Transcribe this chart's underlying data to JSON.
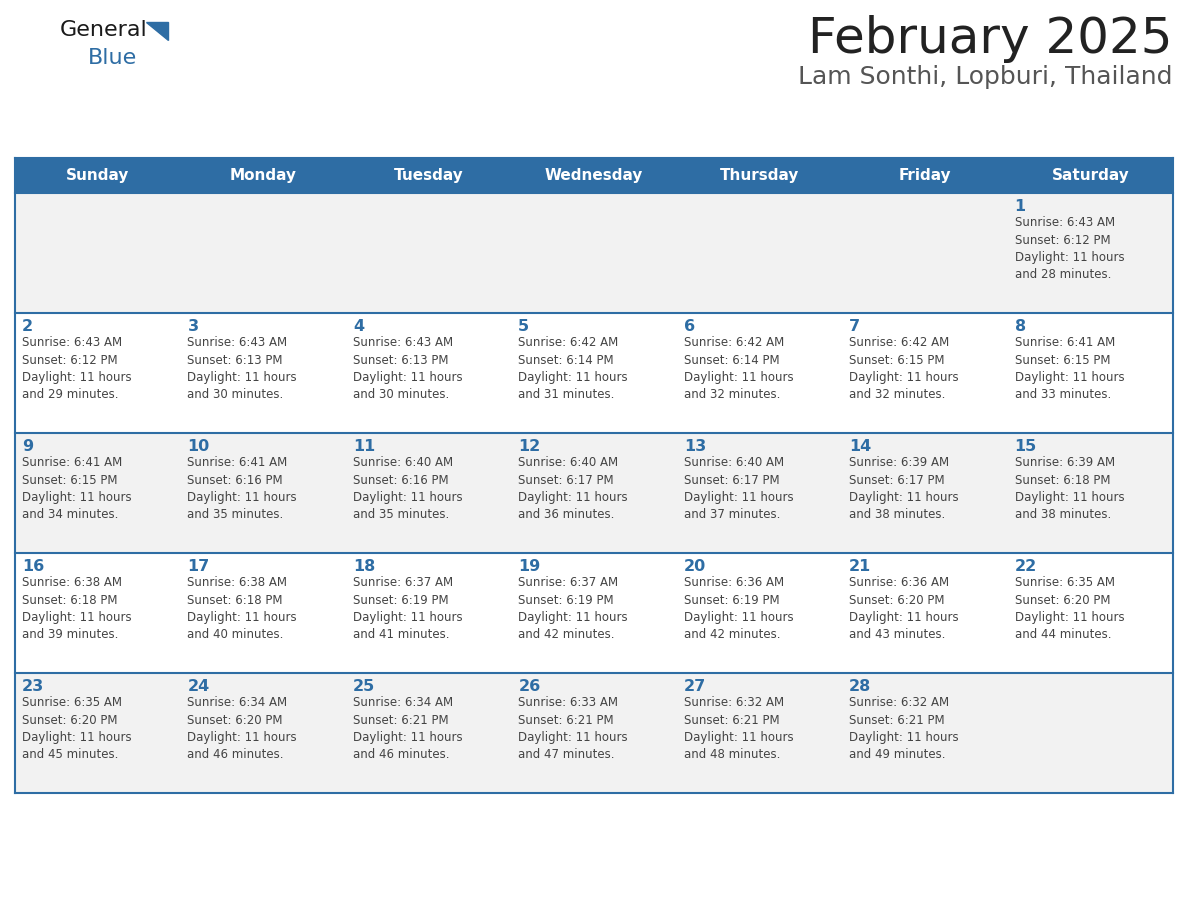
{
  "title": "February 2025",
  "subtitle": "Lam Sonthi, Lopburi, Thailand",
  "days_of_week": [
    "Sunday",
    "Monday",
    "Tuesday",
    "Wednesday",
    "Thursday",
    "Friday",
    "Saturday"
  ],
  "header_bg": "#2E6DA4",
  "header_text": "#FFFFFF",
  "cell_bg_light": "#F2F2F2",
  "cell_bg_white": "#FFFFFF",
  "cell_border": "#2E6DA4",
  "day_num_color": "#2E6DA4",
  "info_color": "#444444",
  "title_color": "#222222",
  "subtitle_color": "#555555",
  "calendar": [
    [
      {
        "day": null
      },
      {
        "day": null
      },
      {
        "day": null
      },
      {
        "day": null
      },
      {
        "day": null
      },
      {
        "day": null
      },
      {
        "day": 1,
        "sunrise": "6:43 AM",
        "sunset": "6:12 PM",
        "daylight": "11 hours and 28 minutes."
      }
    ],
    [
      {
        "day": 2,
        "sunrise": "6:43 AM",
        "sunset": "6:12 PM",
        "daylight": "11 hours and 29 minutes."
      },
      {
        "day": 3,
        "sunrise": "6:43 AM",
        "sunset": "6:13 PM",
        "daylight": "11 hours and 30 minutes."
      },
      {
        "day": 4,
        "sunrise": "6:43 AM",
        "sunset": "6:13 PM",
        "daylight": "11 hours and 30 minutes."
      },
      {
        "day": 5,
        "sunrise": "6:42 AM",
        "sunset": "6:14 PM",
        "daylight": "11 hours and 31 minutes."
      },
      {
        "day": 6,
        "sunrise": "6:42 AM",
        "sunset": "6:14 PM",
        "daylight": "11 hours and 32 minutes."
      },
      {
        "day": 7,
        "sunrise": "6:42 AM",
        "sunset": "6:15 PM",
        "daylight": "11 hours and 32 minutes."
      },
      {
        "day": 8,
        "sunrise": "6:41 AM",
        "sunset": "6:15 PM",
        "daylight": "11 hours and 33 minutes."
      }
    ],
    [
      {
        "day": 9,
        "sunrise": "6:41 AM",
        "sunset": "6:15 PM",
        "daylight": "11 hours and 34 minutes."
      },
      {
        "day": 10,
        "sunrise": "6:41 AM",
        "sunset": "6:16 PM",
        "daylight": "11 hours and 35 minutes."
      },
      {
        "day": 11,
        "sunrise": "6:40 AM",
        "sunset": "6:16 PM",
        "daylight": "11 hours and 35 minutes."
      },
      {
        "day": 12,
        "sunrise": "6:40 AM",
        "sunset": "6:17 PM",
        "daylight": "11 hours and 36 minutes."
      },
      {
        "day": 13,
        "sunrise": "6:40 AM",
        "sunset": "6:17 PM",
        "daylight": "11 hours and 37 minutes."
      },
      {
        "day": 14,
        "sunrise": "6:39 AM",
        "sunset": "6:17 PM",
        "daylight": "11 hours and 38 minutes."
      },
      {
        "day": 15,
        "sunrise": "6:39 AM",
        "sunset": "6:18 PM",
        "daylight": "11 hours and 38 minutes."
      }
    ],
    [
      {
        "day": 16,
        "sunrise": "6:38 AM",
        "sunset": "6:18 PM",
        "daylight": "11 hours and 39 minutes."
      },
      {
        "day": 17,
        "sunrise": "6:38 AM",
        "sunset": "6:18 PM",
        "daylight": "11 hours and 40 minutes."
      },
      {
        "day": 18,
        "sunrise": "6:37 AM",
        "sunset": "6:19 PM",
        "daylight": "11 hours and 41 minutes."
      },
      {
        "day": 19,
        "sunrise": "6:37 AM",
        "sunset": "6:19 PM",
        "daylight": "11 hours and 42 minutes."
      },
      {
        "day": 20,
        "sunrise": "6:36 AM",
        "sunset": "6:19 PM",
        "daylight": "11 hours and 42 minutes."
      },
      {
        "day": 21,
        "sunrise": "6:36 AM",
        "sunset": "6:20 PM",
        "daylight": "11 hours and 43 minutes."
      },
      {
        "day": 22,
        "sunrise": "6:35 AM",
        "sunset": "6:20 PM",
        "daylight": "11 hours and 44 minutes."
      }
    ],
    [
      {
        "day": 23,
        "sunrise": "6:35 AM",
        "sunset": "6:20 PM",
        "daylight": "11 hours and 45 minutes."
      },
      {
        "day": 24,
        "sunrise": "6:34 AM",
        "sunset": "6:20 PM",
        "daylight": "11 hours and 46 minutes."
      },
      {
        "day": 25,
        "sunrise": "6:34 AM",
        "sunset": "6:21 PM",
        "daylight": "11 hours and 46 minutes."
      },
      {
        "day": 26,
        "sunrise": "6:33 AM",
        "sunset": "6:21 PM",
        "daylight": "11 hours and 47 minutes."
      },
      {
        "day": 27,
        "sunrise": "6:32 AM",
        "sunset": "6:21 PM",
        "daylight": "11 hours and 48 minutes."
      },
      {
        "day": 28,
        "sunrise": "6:32 AM",
        "sunset": "6:21 PM",
        "daylight": "11 hours and 49 minutes."
      },
      {
        "day": null
      }
    ]
  ]
}
